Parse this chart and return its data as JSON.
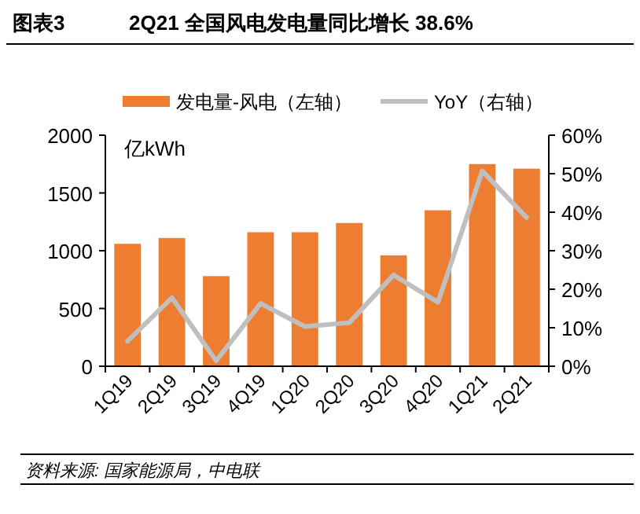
{
  "chart_data": {
    "type": "bar",
    "title": "图表3",
    "subtitle": "2Q21 全国风电发电量同比增长 38.6%",
    "ylabel": "亿kWh",
    "categories": [
      "1Q19",
      "2Q19",
      "3Q19",
      "4Q19",
      "1Q20",
      "2Q20",
      "3Q20",
      "4Q20",
      "1Q21",
      "2Q21"
    ],
    "series": [
      {
        "name": "发电量-风电（左轴）",
        "color": "#ed7d31",
        "values": [
          1060,
          1110,
          780,
          1160,
          1160,
          1240,
          960,
          1350,
          1750,
          1710
        ]
      },
      {
        "name": "YoY（右轴）",
        "type": "line",
        "axis": "y2",
        "color": "#bfbfbf",
        "values": [
          6.5,
          17.8,
          1.4,
          16.3,
          10.3,
          11.3,
          23.7,
          16.6,
          50.7,
          38.6
        ]
      }
    ],
    "ylim": [
      0,
      2000
    ],
    "yticks": [
      0,
      500,
      1000,
      1500,
      2000
    ],
    "y2lim": [
      0,
      60
    ],
    "y2ticks": [
      {
        "value": 0,
        "label": "0%"
      },
      {
        "value": 10,
        "label": "10%"
      },
      {
        "value": 20,
        "label": "20%"
      },
      {
        "value": 30,
        "label": "30%"
      },
      {
        "value": 40,
        "label": "40%"
      },
      {
        "value": 50,
        "label": "50%"
      },
      {
        "value": 60,
        "label": "60%"
      }
    ],
    "legend": "top",
    "grid": false,
    "annotations": [
      "资料来源: 国家能源局，中电联"
    ]
  }
}
